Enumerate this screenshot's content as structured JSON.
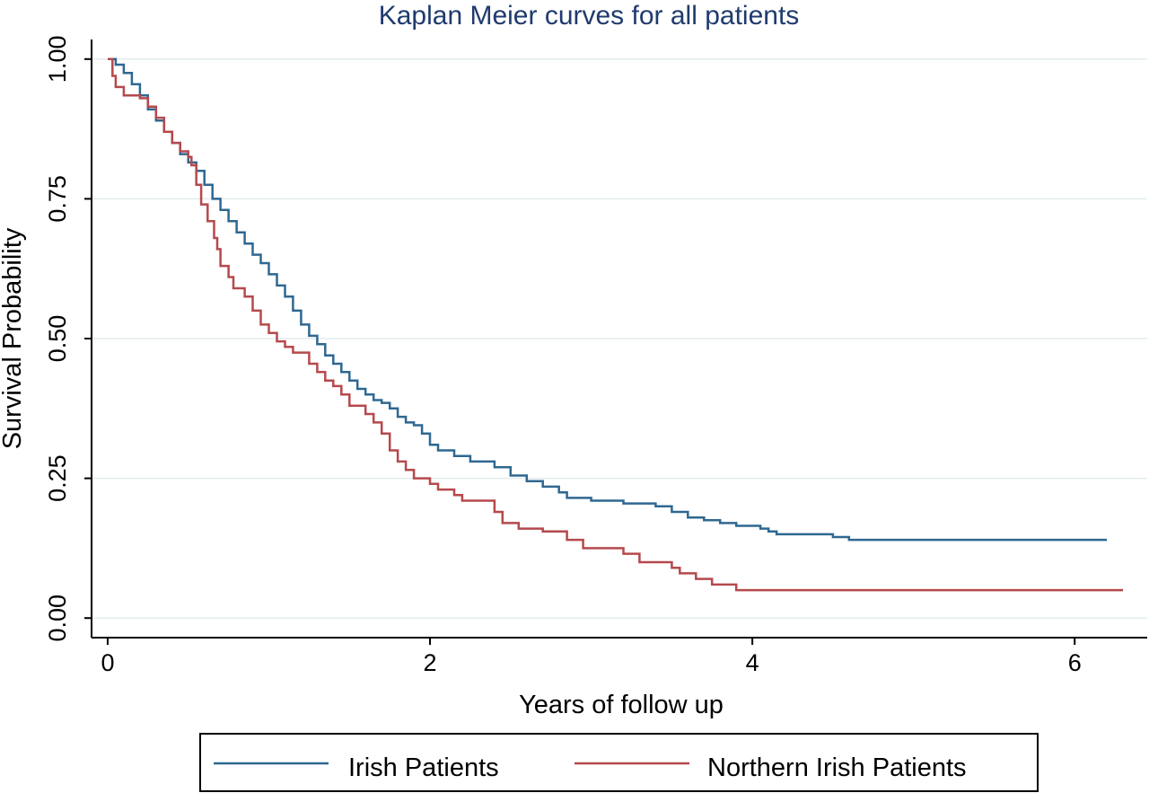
{
  "chart_data": {
    "type": "line",
    "title": "Kaplan Meier curves for all patients",
    "xlabel": "Years of follow up",
    "ylabel": "Survival Probability",
    "xlim": [
      -0.1,
      6.45
    ],
    "ylim": [
      -0.035,
      1.035
    ],
    "xticks": [
      0,
      2,
      4,
      6
    ],
    "yticks": [
      0,
      0.25,
      0.5,
      0.75,
      1.0
    ],
    "ytick_labels": [
      "0.00",
      "0.25",
      "0.50",
      "0.75",
      "1.00"
    ],
    "grid": true,
    "legend_position": "bottom",
    "series": [
      {
        "name": "Irish Patients",
        "color": "#2e6891",
        "step": true,
        "points": [
          [
            0,
            1.0
          ],
          [
            0.05,
            0.99
          ],
          [
            0.1,
            0.975
          ],
          [
            0.15,
            0.955
          ],
          [
            0.2,
            0.935
          ],
          [
            0.25,
            0.91
          ],
          [
            0.3,
            0.89
          ],
          [
            0.35,
            0.87
          ],
          [
            0.4,
            0.85
          ],
          [
            0.45,
            0.83
          ],
          [
            0.5,
            0.815
          ],
          [
            0.55,
            0.8
          ],
          [
            0.6,
            0.775
          ],
          [
            0.65,
            0.75
          ],
          [
            0.7,
            0.73
          ],
          [
            0.75,
            0.71
          ],
          [
            0.8,
            0.69
          ],
          [
            0.85,
            0.67
          ],
          [
            0.9,
            0.65
          ],
          [
            0.95,
            0.635
          ],
          [
            1.0,
            0.615
          ],
          [
            1.05,
            0.595
          ],
          [
            1.1,
            0.575
          ],
          [
            1.15,
            0.55
          ],
          [
            1.2,
            0.525
          ],
          [
            1.25,
            0.505
          ],
          [
            1.3,
            0.49
          ],
          [
            1.35,
            0.47
          ],
          [
            1.4,
            0.455
          ],
          [
            1.45,
            0.44
          ],
          [
            1.5,
            0.425
          ],
          [
            1.55,
            0.41
          ],
          [
            1.6,
            0.4
          ],
          [
            1.65,
            0.39
          ],
          [
            1.7,
            0.385
          ],
          [
            1.75,
            0.375
          ],
          [
            1.8,
            0.36
          ],
          [
            1.85,
            0.35
          ],
          [
            1.9,
            0.345
          ],
          [
            1.95,
            0.33
          ],
          [
            2.0,
            0.31
          ],
          [
            2.05,
            0.3
          ],
          [
            2.15,
            0.29
          ],
          [
            2.25,
            0.28
          ],
          [
            2.4,
            0.27
          ],
          [
            2.5,
            0.255
          ],
          [
            2.6,
            0.245
          ],
          [
            2.7,
            0.235
          ],
          [
            2.8,
            0.225
          ],
          [
            2.85,
            0.215
          ],
          [
            3.0,
            0.21
          ],
          [
            3.2,
            0.205
          ],
          [
            3.4,
            0.2
          ],
          [
            3.5,
            0.19
          ],
          [
            3.6,
            0.18
          ],
          [
            3.7,
            0.175
          ],
          [
            3.8,
            0.17
          ],
          [
            3.9,
            0.165
          ],
          [
            4.05,
            0.16
          ],
          [
            4.1,
            0.155
          ],
          [
            4.15,
            0.15
          ],
          [
            4.5,
            0.145
          ],
          [
            4.6,
            0.14
          ],
          [
            6.2,
            0.14
          ]
        ]
      },
      {
        "name": "Northern Irish Patients",
        "color": "#b5494d",
        "step": true,
        "points": [
          [
            0,
            1.0
          ],
          [
            0.03,
            0.97
          ],
          [
            0.05,
            0.95
          ],
          [
            0.1,
            0.935
          ],
          [
            0.2,
            0.93
          ],
          [
            0.25,
            0.915
          ],
          [
            0.3,
            0.895
          ],
          [
            0.35,
            0.87
          ],
          [
            0.4,
            0.85
          ],
          [
            0.45,
            0.835
          ],
          [
            0.5,
            0.825
          ],
          [
            0.52,
            0.81
          ],
          [
            0.55,
            0.775
          ],
          [
            0.58,
            0.74
          ],
          [
            0.62,
            0.71
          ],
          [
            0.66,
            0.68
          ],
          [
            0.68,
            0.66
          ],
          [
            0.7,
            0.63
          ],
          [
            0.75,
            0.61
          ],
          [
            0.78,
            0.59
          ],
          [
            0.85,
            0.575
          ],
          [
            0.9,
            0.55
          ],
          [
            0.95,
            0.525
          ],
          [
            1.0,
            0.51
          ],
          [
            1.05,
            0.495
          ],
          [
            1.1,
            0.485
          ],
          [
            1.15,
            0.475
          ],
          [
            1.25,
            0.455
          ],
          [
            1.3,
            0.44
          ],
          [
            1.35,
            0.425
          ],
          [
            1.4,
            0.415
          ],
          [
            1.45,
            0.4
          ],
          [
            1.5,
            0.38
          ],
          [
            1.6,
            0.365
          ],
          [
            1.65,
            0.35
          ],
          [
            1.7,
            0.33
          ],
          [
            1.75,
            0.3
          ],
          [
            1.8,
            0.28
          ],
          [
            1.85,
            0.265
          ],
          [
            1.9,
            0.25
          ],
          [
            2.0,
            0.24
          ],
          [
            2.05,
            0.23
          ],
          [
            2.15,
            0.22
          ],
          [
            2.2,
            0.21
          ],
          [
            2.4,
            0.19
          ],
          [
            2.45,
            0.17
          ],
          [
            2.55,
            0.16
          ],
          [
            2.7,
            0.155
          ],
          [
            2.85,
            0.14
          ],
          [
            2.95,
            0.125
          ],
          [
            3.2,
            0.115
          ],
          [
            3.3,
            0.1
          ],
          [
            3.5,
            0.09
          ],
          [
            3.55,
            0.08
          ],
          [
            3.65,
            0.07
          ],
          [
            3.75,
            0.06
          ],
          [
            3.9,
            0.05
          ],
          [
            6.3,
            0.05
          ]
        ]
      }
    ]
  },
  "legend": {
    "items": [
      {
        "label": "Irish Patients"
      },
      {
        "label": "Northern Irish Patients"
      }
    ]
  }
}
